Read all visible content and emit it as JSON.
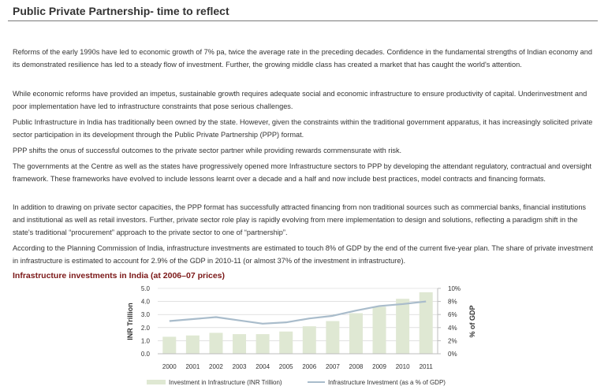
{
  "page": {
    "title": "Public Private Partnership- time to reflect",
    "paragraphs": [
      "Reforms of the early 1990s have led to economic growth of 7% pa, twice the average rate in the preceding decades. Confidence in the fundamental strengths of Indian economy and its demonstrated resilience has led to a steady flow of investment. Further, the growing middle class has created a market that has caught the world's attention.",
      "While economic reforms have provided an impetus, sustainable growth requires adequate social and economic infrastructure to ensure productivity of capital. Underinvestment and poor implementation have led to infrastructure constraints that pose serious challenges.",
      "Public Infrastructure in India has traditionally been owned by the state. However, given the constraints within the traditional government apparatus, it has increasingly solicited private sector participation in its development through the Public Private Partnership (PPP) format.",
      "PPP shifts the onus of successful outcomes to the private sector partner while providing rewards commensurate with risk.",
      "The governments at the Centre as well as the states have progressively opened more Infrastructure sectors to PPP by developing the attendant regulatory, contractual and oversight framework. These frameworks have evolved to include lessons learnt over a decade and a half and now include best practices, model contracts and financing formats.",
      "In addition to drawing on private sector capacities, the PPP format has successfully attracted financing from non traditional sources such as commercial banks, financial institutions and institutional as well as retail investors. Further, private sector role play is rapidly evolving from mere implementation to design and solutions, reflecting a paradigm shift in the state's traditional “procurement” approach to the private sector to one of “partnership”.",
      "According to the Planning Commission of India, infrastructure investments are estimated to touch 8% of GDP by the end of the current five-year plan. The share of private investment in infrastructure is estimated to account for 2.9% of the GDP in 2010-11 (or almost 37% of the investment in infrastructure)."
    ]
  },
  "colors": {
    "bar": "#dfe8d3",
    "line": "#a9bccb",
    "grid": "#cfcfcf",
    "chart_title": "#7b1717"
  },
  "chart_data": {
    "type": "bar",
    "title": "Infrastructure investments in India (at 2006–07 prices)",
    "categories": [
      "2000",
      "2001",
      "2002",
      "2003",
      "2004",
      "2005",
      "2006",
      "2007",
      "2008",
      "2009",
      "2010",
      "2011"
    ],
    "series": [
      {
        "name": "Investment in Infrastructure (INR Trillion)",
        "type": "bar",
        "axis": "left",
        "values": [
          1.3,
          1.4,
          1.6,
          1.5,
          1.5,
          1.7,
          2.1,
          2.5,
          3.1,
          3.6,
          4.2,
          4.7
        ]
      },
      {
        "name": "Infrastructure Investment (as a % of GDP)",
        "type": "line",
        "axis": "right",
        "values": [
          5.0,
          5.3,
          5.6,
          5.1,
          4.6,
          4.8,
          5.4,
          5.8,
          6.6,
          7.3,
          7.6,
          8.0
        ]
      }
    ],
    "ylabel": "INR Trillion",
    "ylim": [
      0,
      5
    ],
    "yticks": [
      "0.0",
      "1.0",
      "2.0",
      "3.0",
      "4.0",
      "5.0"
    ],
    "y2label": "% of GDP",
    "y2lim": [
      0,
      10
    ],
    "y2ticks": [
      "0%",
      "2%",
      "4%",
      "6%",
      "8%",
      "10%"
    ],
    "grid": true,
    "legend_position": "bottom"
  }
}
